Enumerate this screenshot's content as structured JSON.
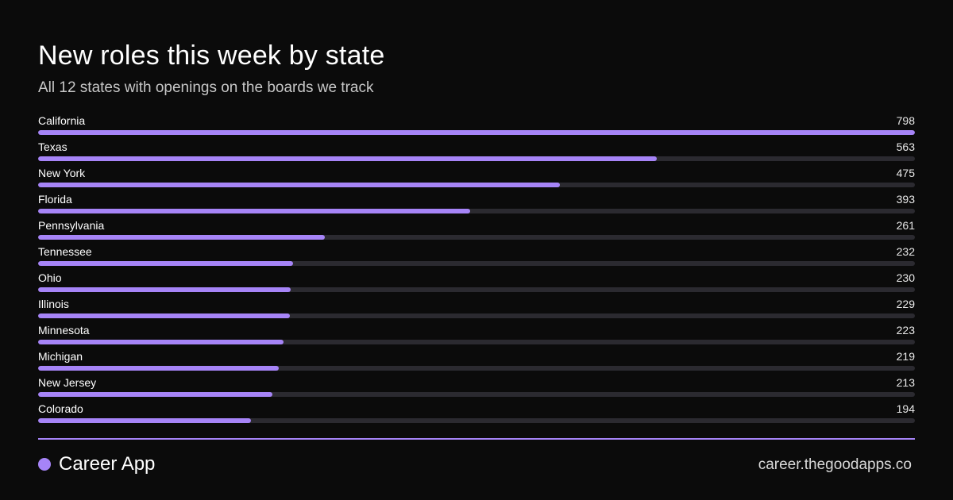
{
  "header": {
    "title": "New roles this week by state",
    "subtitle": "All 12 states with openings on the boards we track"
  },
  "chart_data": {
    "type": "bar",
    "orientation": "horizontal",
    "categories": [
      "California",
      "Texas",
      "New York",
      "Florida",
      "Pennsylvania",
      "Tennessee",
      "Ohio",
      "Illinois",
      "Minnesota",
      "Michigan",
      "New Jersey",
      "Colorado"
    ],
    "values": [
      798,
      563,
      475,
      393,
      261,
      232,
      230,
      229,
      223,
      219,
      213,
      194
    ],
    "xlim": [
      0,
      798
    ],
    "grid": false,
    "legend": "none",
    "colors": {
      "bar": "#a684f7",
      "track": "#2b2a30"
    }
  },
  "footer": {
    "brand_name": "Career App",
    "url": "career.thegoodapps.co"
  },
  "colors": {
    "background": "#0b0b0b",
    "accent": "#a684f7"
  }
}
